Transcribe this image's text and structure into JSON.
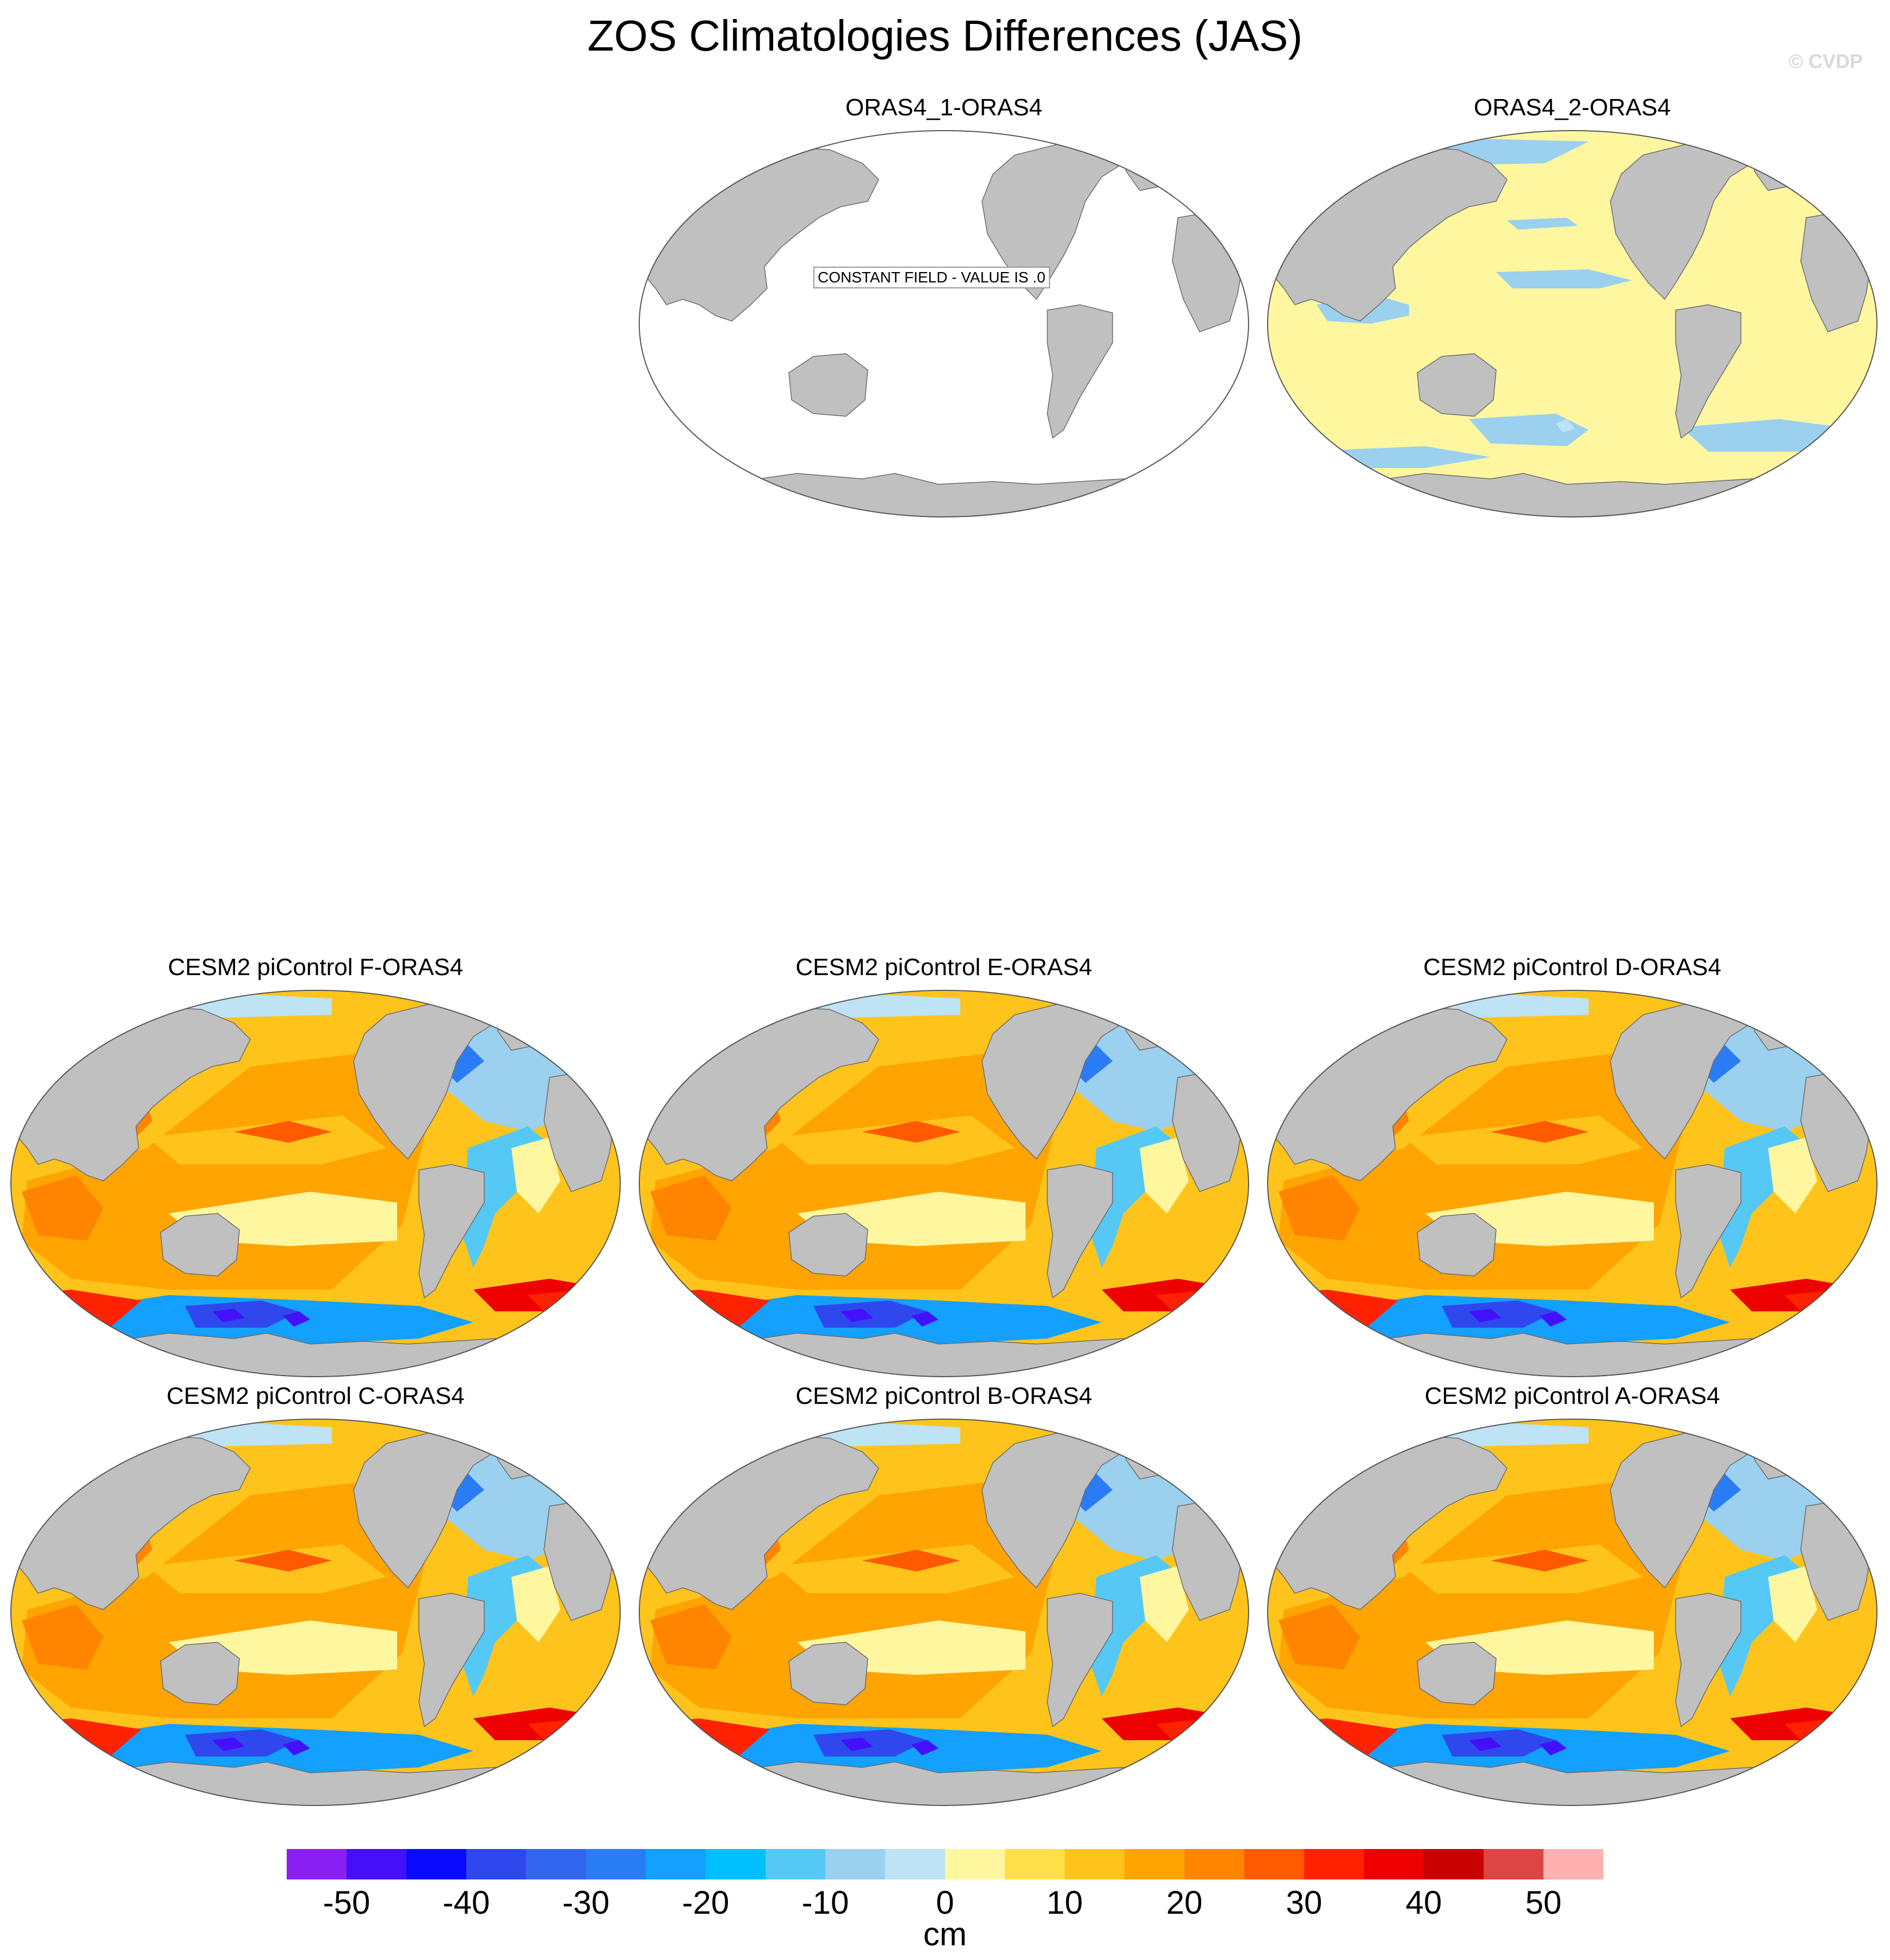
{
  "title": "ZOS Climatologies Differences (JAS)",
  "copyright": "© CVDP",
  "constant_label": "CONSTANT FIELD - VALUE IS .0",
  "panels": [
    {
      "title": "ORAS4_1-ORAS4",
      "mode": "constant"
    },
    {
      "title": "ORAS4_2-ORAS4",
      "mode": "small"
    },
    {
      "title": "CESM2 piControl F-ORAS4",
      "mode": "model"
    },
    {
      "title": "CESM2 piControl E-ORAS4",
      "mode": "model"
    },
    {
      "title": "CESM2 piControl D-ORAS4",
      "mode": "model"
    },
    {
      "title": "CESM2 piControl C-ORAS4",
      "mode": "model"
    },
    {
      "title": "CESM2 piControl B-ORAS4",
      "mode": "model"
    },
    {
      "title": "CESM2 piControl A-ORAS4",
      "mode": "model"
    }
  ],
  "colorbar": {
    "unit": "cm",
    "ticks": [
      "-50",
      "-40",
      "-30",
      "-20",
      "-10",
      "0",
      "10",
      "20",
      "30",
      "40",
      "50"
    ],
    "colors": [
      "#8a1ff2",
      "#4410fa",
      "#0a0aff",
      "#2e48ee",
      "#3366ee",
      "#2a7cf5",
      "#13a0ff",
      "#00bfff",
      "#55c8f5",
      "#9bd0ef",
      "#bde3f5",
      "#fff7a0",
      "#ffe04a",
      "#ffc41c",
      "#ffa400",
      "#ff8500",
      "#ff5a00",
      "#ff2200",
      "#ee0000",
      "#c80000",
      "#dd4444",
      "#ffb0b0"
    ]
  },
  "map_colors": {
    "land": "#c0c0c0",
    "coast": "#6a6a6a",
    "ocean_empty": "#ffffff"
  }
}
